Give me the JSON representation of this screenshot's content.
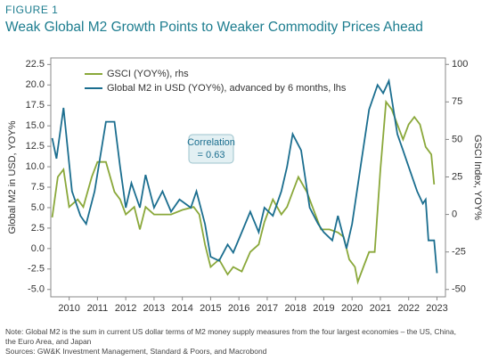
{
  "header": {
    "figure": "FIGURE 1"
  },
  "chart_data": {
    "type": "line",
    "title": "Weak Global M2 Growth Points to Weaker Commodity Prices Ahead",
    "y_label": "Global M2 in USD, YOY%",
    "y2_label": "GSCI Index, YOY%",
    "annotation": [
      "Correlation",
      "= 0.63"
    ],
    "xlim": [
      2009.35,
      2023.3
    ],
    "xticks": [
      2010,
      2011,
      2012,
      2013,
      2014,
      2015,
      2016,
      2017,
      2018,
      2019,
      2020,
      2021,
      2022,
      2023
    ],
    "ylim": [
      -5.9,
      23.3
    ],
    "yticks": [
      {
        "value": -5,
        "label": "-5.0"
      },
      -2.5,
      {
        "value": 0,
        "label": "0.0"
      },
      2.5,
      {
        "value": 5,
        "label": "5.0"
      },
      7.5,
      {
        "value": 10,
        "label": "10.0"
      },
      12.5,
      {
        "value": 15,
        "label": "15.0"
      },
      17.5,
      {
        "value": 20,
        "label": "20.0"
      },
      22.5
    ],
    "y2lim": [
      -54.9,
      104.3
    ],
    "y2ticks": [
      -50,
      -25,
      0,
      25,
      50,
      75,
      100
    ],
    "legend": "upper left",
    "series": [
      {
        "name": "GSCI (YOY%), rhs",
        "color": "#8aa83a",
        "axis": "y2",
        "x": [
          2009.4,
          2009.6,
          2009.8,
          2010.0,
          2010.3,
          2010.5,
          2010.8,
          2011.0,
          2011.3,
          2011.6,
          2011.8,
          2012.0,
          2012.3,
          2012.5,
          2012.7,
          2013.0,
          2013.3,
          2013.6,
          2014.0,
          2014.4,
          2014.6,
          2014.8,
          2015.0,
          2015.3,
          2015.6,
          2015.8,
          2016.1,
          2016.4,
          2016.7,
          2016.9,
          2017.2,
          2017.5,
          2017.7,
          2017.9,
          2018.1,
          2018.4,
          2018.7,
          2018.9,
          2019.2,
          2019.5,
          2019.7,
          2019.9,
          2020.1,
          2020.2,
          2020.4,
          2020.6,
          2020.8,
          2021.0,
          2021.2,
          2021.4,
          2021.6,
          2021.8,
          2022.0,
          2022.2,
          2022.4,
          2022.6,
          2022.8,
          2022.9
        ],
        "values": [
          -2,
          25,
          30,
          5,
          10,
          5,
          25,
          35,
          35,
          15,
          10,
          0,
          5,
          -10,
          5,
          0,
          0,
          0,
          3,
          5,
          0,
          -20,
          -35,
          -30,
          -40,
          -35,
          -38,
          -25,
          -20,
          -5,
          10,
          0,
          5,
          15,
          25,
          15,
          0,
          -10,
          -10,
          -12,
          -15,
          -30,
          -35,
          -45,
          -35,
          -25,
          -25,
          30,
          75,
          70,
          60,
          50,
          60,
          65,
          60,
          45,
          40,
          20
        ]
      },
      {
        "name": "Global M2 in USD (YOY%), advanced by 6 months, lhs",
        "color": "#1b6e8f",
        "x": [
          2009.4,
          2009.55,
          2009.8,
          2010.1,
          2010.4,
          2010.6,
          2010.9,
          2011.3,
          2011.6,
          2011.8,
          2012.0,
          2012.2,
          2012.5,
          2012.7,
          2013.0,
          2013.3,
          2013.6,
          2013.9,
          2014.3,
          2014.5,
          2014.8,
          2015.0,
          2015.3,
          2015.6,
          2015.8,
          2016.1,
          2016.4,
          2016.7,
          2016.9,
          2017.2,
          2017.5,
          2017.7,
          2017.9,
          2018.2,
          2018.5,
          2018.8,
          2019.0,
          2019.3,
          2019.5,
          2019.8,
          2020.0,
          2020.3,
          2020.6,
          2020.9,
          2021.1,
          2021.3,
          2021.6,
          2021.8,
          2022.0,
          2022.3,
          2022.5,
          2022.6,
          2022.7,
          2022.9,
          2023.0
        ],
        "values": [
          13.5,
          11,
          17.2,
          7,
          4,
          3,
          7,
          15.5,
          15.5,
          10,
          5,
          8,
          5,
          9,
          5,
          7,
          4.5,
          6,
          5,
          7,
          3,
          -1,
          -1.5,
          0.5,
          -0.5,
          2,
          4.5,
          2,
          5,
          4,
          7,
          10,
          14,
          12,
          5,
          3,
          2,
          1,
          4,
          0,
          3,
          10,
          17,
          20,
          19,
          20.5,
          14,
          12,
          10,
          7,
          5.5,
          6,
          1,
          1,
          -3
        ]
      }
    ]
  },
  "notes": [
    "Note: Global M2 is the sum in current US dollar terms of M2 money supply measures from the four largest economies – the US, China, the Euro Area, and Japan",
    "Sources: GW&K Investment Management, Standard & Poors, and Macrobond"
  ]
}
